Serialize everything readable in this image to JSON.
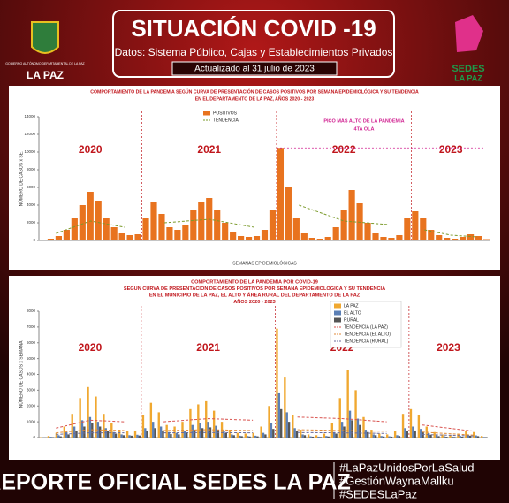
{
  "header": {
    "title": "SITUACIÓN COVID -19",
    "subtitle": "Datos: Sistema Público, Cajas y Establecimientos Privados",
    "updated": "Actualizado  al  31  julio  de  2023",
    "logo_left": "LA PAZ",
    "logo_left_caption": "GOBIERNO AUTÓNOMO DEPARTAMENTAL DE LA PAZ",
    "logo_right": [
      "SEDES",
      "LA PAZ"
    ]
  },
  "chart_data": [
    {
      "type": "bar",
      "title": [
        "COMPORTAMIENTO DE LA PANDEMIA SEGÚN CURVA DE PRESENTACIÓN DE CASOS POSITIVOS POR SEMANA EPIDEMIOLÓGICA Y SU TENDENCIA",
        "EN EL DEPARTAMENTO DE LA PAZ, AÑOS 2020 - 2023"
      ],
      "ylabel": "NÚMERO DE CASOS x SE.",
      "xlabel": "SEMANAS EPIDEMIOLÓGICAS",
      "years": [
        "2020",
        "2021",
        "2022",
        "2023"
      ],
      "annotation": [
        "PICO MÁS ALTO DE LA PANDEMIA",
        "4TA OLA"
      ],
      "ylim": [
        0,
        14000
      ],
      "yticks": [
        0,
        2000,
        4000,
        6000,
        8000,
        10000,
        12000,
        14000
      ],
      "series": [
        {
          "name": "POSITIVOS",
          "type": "bar",
          "color": "#e8731f",
          "values": [
            [
              50,
              200,
              500,
              1200,
              2500,
              4000,
              5500,
              4500,
              2500,
              1500,
              800,
              600,
              700
            ],
            [
              2500,
              4300,
              3000,
              1500,
              1200,
              1800,
              3500,
              4400,
              4800,
              3500,
              2000,
              1000,
              500,
              400,
              500,
              1200,
              3500
            ],
            [
              10477,
              6000,
              2500,
              800,
              300,
              200,
              400,
              1500,
              3500,
              5700,
              4200,
              2000,
              800,
              400,
              300,
              600,
              2500
            ],
            [
              3300,
              2500,
              1200,
              600,
              300,
              200,
              400,
              700,
              500,
              150
            ]
          ]
        },
        {
          "name": "TENDENCIA",
          "type": "line",
          "color": "#7a9a2a",
          "values": [
            [
              800,
              2200,
              1500
            ],
            [
              2000,
              2400,
              1500
            ],
            [
              4000,
              2200,
              1800
            ],
            [
              1200,
              600,
              400
            ]
          ]
        }
      ]
    },
    {
      "type": "bar",
      "title": [
        "COMPORTAMIENTO DE LA PANDEMIA POR COVID-19",
        "SEGÚN CURVA DE PRESENTACIÓN DE CASOS POSITIVOS POR SEMANA EPIDEMIOLÓGICA Y SU TENDENCIA",
        "EN EL  MUNICIPIO DE LA PAZ, EL ALTO Y ÁREA RURAL DEL DEPARTAMENTO DE LA PAZ",
        "AÑOS 2020 - 2023"
      ],
      "ylabel": "NÚMERO DE CASOS x SEMANA",
      "years": [
        "2020",
        "2021",
        "2022",
        "2023"
      ],
      "ylim": [
        0,
        8000
      ],
      "yticks": [
        0,
        1000,
        2000,
        3000,
        4000,
        5000,
        6000,
        7000,
        8000
      ],
      "series": [
        {
          "name": "LA PAZ",
          "type": "bar",
          "color": "#f0a830",
          "values": [
            [
              20,
              100,
              300,
              700,
              1500,
              2500,
              3200,
              2600,
              1500,
              900,
              500,
              400,
              450
            ],
            [
              1400,
              2200,
              1600,
              800,
              700,
              1000,
              1800,
              2100,
              2300,
              1700,
              1000,
              500,
              300,
              250,
              300,
              700,
              2000
            ],
            [
              6900,
              3800,
              1400,
              500,
              200,
              150,
              250,
              900,
              2500,
              4300,
              3000,
              1300,
              500,
              250,
              200,
              400,
              1500
            ],
            [
              1800,
              1400,
              700,
              350,
              200,
              150,
              250,
              450,
              350,
              100
            ]
          ]
        },
        {
          "name": "EL ALTO",
          "type": "bar",
          "color": "#5b7fb5",
          "values": [
            [
              10,
              50,
              150,
              350,
              700,
              1100,
              1300,
              1000,
              600,
              350,
              200,
              150,
              180
            ],
            [
              600,
              1000,
              700,
              350,
              300,
              450,
              800,
              950,
              1000,
              750,
              450,
              200,
              120,
              100,
              120,
              300,
              900
            ],
            [
              2800,
              1600,
              600,
              200,
              80,
              60,
              100,
              350,
              1000,
              1700,
              1200,
              500,
              200,
              100,
              80,
              150,
              600
            ],
            [
              700,
              550,
              280,
              140,
              80,
              60,
              100,
              180,
              140,
              40
            ]
          ]
        },
        {
          "name": "RURAL",
          "type": "bar",
          "color": "#555555",
          "values": [
            [
              5,
              30,
              80,
              200,
              400,
              700,
              900,
              700,
              400,
              250,
              150,
              120,
              130
            ],
            [
              400,
              600,
              450,
              220,
              200,
              280,
              500,
              600,
              650,
              480,
              280,
              150,
              90,
              70,
              80,
              200,
              550
            ],
            [
              1800,
              1000,
              400,
              150,
              60,
              40,
              70,
              250,
              700,
              1100,
              800,
              350,
              150,
              70,
              60,
              100,
              400
            ],
            [
              450,
              350,
              180,
              90,
              50,
              40,
              60,
              120,
              90,
              30
            ]
          ]
        },
        {
          "name": "TENDENCIA (LA PAZ)",
          "type": "line",
          "color": "#d9534f",
          "values": [
            [
              600,
              1100,
              1000
            ],
            [
              1000,
              1200,
              1100
            ],
            [
              1300,
              1200,
              1000
            ],
            [
              800,
              600,
              400
            ]
          ]
        },
        {
          "name": "TENDENCIA (EL ALTO)",
          "type": "line",
          "color": "#e08a3a",
          "values": [
            [
              300,
              500,
              450
            ],
            [
              450,
              500,
              450
            ],
            [
              500,
              450,
              400
            ],
            [
              350,
              250,
              150
            ]
          ]
        },
        {
          "name": "TENDENCIA (RURAL)",
          "type": "line",
          "color": "#6a6a9a",
          "values": [
            [
              200,
              300,
              300
            ],
            [
              300,
              320,
              300
            ],
            [
              320,
              300,
              260
            ],
            [
              200,
              150,
              100
            ]
          ]
        }
      ]
    }
  ],
  "footer": {
    "title": "REPORTE OFICIAL SEDES LA PAZ",
    "hashtags": [
      "#LaPazUnidosPorLaSalud",
      "#GestiónWaynaMallku",
      "#SEDESLaPaz"
    ]
  }
}
